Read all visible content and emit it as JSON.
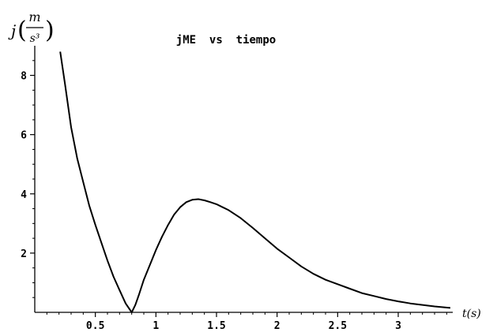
{
  "chart_data": {
    "type": "line",
    "title": "jME  vs  tiempo",
    "xlabel": "t(s)",
    "ylabel": {
      "symbol": "j",
      "numerator": "m",
      "denominator": "s³"
    },
    "xlim": [
      0,
      3.45
    ],
    "ylim": [
      0,
      9.0
    ],
    "x_ticks": [
      0.5,
      1,
      1.5,
      2,
      2.5,
      3
    ],
    "x_tick_labels": [
      "0.5",
      "1",
      "1.5",
      "2",
      "2.5",
      "3"
    ],
    "y_ticks": [
      2,
      4,
      6,
      8
    ],
    "y_tick_labels": [
      "2",
      "4",
      "6",
      "8"
    ],
    "grid": false,
    "series": [
      {
        "color": "#000000",
        "x": [
          0.21,
          0.25,
          0.3,
          0.35,
          0.4,
          0.45,
          0.5,
          0.55,
          0.6,
          0.65,
          0.7,
          0.75,
          0.8,
          0.83,
          0.86,
          0.9,
          0.95,
          1.0,
          1.05,
          1.1,
          1.15,
          1.2,
          1.25,
          1.3,
          1.35,
          1.4,
          1.45,
          1.5,
          1.55,
          1.6,
          1.7,
          1.8,
          1.9,
          2.0,
          2.1,
          2.2,
          2.3,
          2.4,
          2.5,
          2.6,
          2.7,
          2.8,
          2.9,
          3.0,
          3.1,
          3.2,
          3.3,
          3.43
        ],
        "y": [
          8.8,
          7.7,
          6.25,
          5.2,
          4.4,
          3.6,
          2.95,
          2.35,
          1.75,
          1.2,
          0.75,
          0.3,
          0.0,
          0.25,
          0.6,
          1.1,
          1.6,
          2.1,
          2.55,
          2.95,
          3.3,
          3.55,
          3.72,
          3.8,
          3.82,
          3.78,
          3.72,
          3.65,
          3.55,
          3.45,
          3.18,
          2.85,
          2.5,
          2.15,
          1.85,
          1.55,
          1.3,
          1.1,
          0.95,
          0.8,
          0.65,
          0.55,
          0.45,
          0.37,
          0.3,
          0.25,
          0.2,
          0.15
        ]
      }
    ]
  }
}
